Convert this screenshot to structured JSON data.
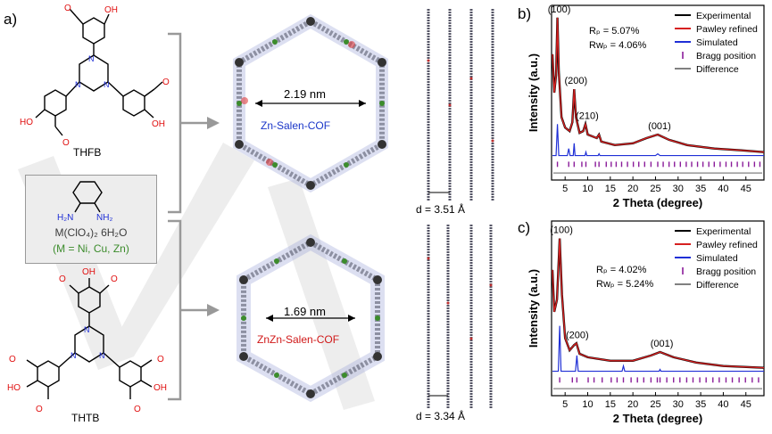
{
  "panel_labels": {
    "a": "a)",
    "b": "b)",
    "c": "c)"
  },
  "molecules": {
    "thfb": "THFB",
    "thtb": "THTB",
    "amine_metal_line1": "M(ClO₄)₂ 6H₂O",
    "amine_metal_line2": "(M = Ni, Cu, Zn)",
    "atom_o": "O",
    "atom_n": "N",
    "atom_ho": "HO",
    "atom_oh": "OH",
    "atom_h2n": "H₂N",
    "atom_nh2": "NH₂"
  },
  "cofs": {
    "top_name": "Zn-Salen-COF",
    "top_pore": "2.19 nm",
    "top_spacing": "d = 3.51 Å",
    "bottom_name": "ZnZn-Salen-COF",
    "bottom_pore": "1.69 nm",
    "bottom_spacing": "d = 3.34 Å"
  },
  "colors": {
    "experimental": "#000000",
    "pawley": "#d62020",
    "simulated": "#1f2fd6",
    "bragg": "#8a1c9a",
    "difference": "#808080",
    "metal_label": "#3c8c2c",
    "cof_top": "#1a36c8",
    "cof_bottom": "#d01818"
  },
  "chart_data": [
    {
      "panel": "b)",
      "type": "line",
      "xlabel": "2 Theta (degree)",
      "ylabel": "Intensity (a.u.)",
      "xlim": [
        2,
        49
      ],
      "xticks": [
        5,
        10,
        15,
        20,
        25,
        30,
        35,
        40,
        45
      ],
      "legend": [
        "Experimental",
        "Pawley refined",
        "Simulated",
        "Bragg position",
        "Difference"
      ],
      "stats": {
        "rp": "Rₚ = 5.07%",
        "rwp": "Rᴡₚ = 4.06%"
      },
      "peak_labels": [
        {
          "text": "(100)",
          "x": 3.3
        },
        {
          "text": "(200)",
          "x": 7.0
        },
        {
          "text": "(210)",
          "x": 9.5
        },
        {
          "text": "(001)",
          "x": 25.5
        }
      ],
      "experimental": [
        [
          2.2,
          0.72
        ],
        [
          2.6,
          0.5
        ],
        [
          3.0,
          0.6
        ],
        [
          3.3,
          0.93
        ],
        [
          3.6,
          0.62
        ],
        [
          4.2,
          0.36
        ],
        [
          5.0,
          0.3
        ],
        [
          6.0,
          0.28
        ],
        [
          6.6,
          0.33
        ],
        [
          7.0,
          0.52
        ],
        [
          7.4,
          0.36
        ],
        [
          8.2,
          0.27
        ],
        [
          9.0,
          0.28
        ],
        [
          9.5,
          0.32
        ],
        [
          10.0,
          0.26
        ],
        [
          12.0,
          0.24
        ],
        [
          12.5,
          0.26
        ],
        [
          13.0,
          0.22
        ],
        [
          16.0,
          0.2
        ],
        [
          20.0,
          0.21
        ],
        [
          23.0,
          0.24
        ],
        [
          25.5,
          0.26
        ],
        [
          28.0,
          0.23
        ],
        [
          32.0,
          0.2
        ],
        [
          38.0,
          0.18
        ],
        [
          44.0,
          0.17
        ],
        [
          49.0,
          0.16
        ]
      ],
      "simulated": [
        [
          2.2,
          0.1
        ],
        [
          3.0,
          0.1
        ],
        [
          3.3,
          0.28
        ],
        [
          3.6,
          0.1
        ],
        [
          5.5,
          0.1
        ],
        [
          5.8,
          0.14
        ],
        [
          6.1,
          0.1
        ],
        [
          6.8,
          0.1
        ],
        [
          7.0,
          0.17
        ],
        [
          7.2,
          0.1
        ],
        [
          9.4,
          0.1
        ],
        [
          9.6,
          0.12
        ],
        [
          9.8,
          0.1
        ],
        [
          12.3,
          0.1
        ],
        [
          12.5,
          0.11
        ],
        [
          12.7,
          0.1
        ],
        [
          25.0,
          0.1
        ],
        [
          25.5,
          0.11
        ],
        [
          26.0,
          0.1
        ],
        [
          49.0,
          0.1
        ]
      ],
      "bragg": [
        3.3,
        5.8,
        7.0,
        8.7,
        9.6,
        11.7,
        12.5,
        14.1,
        15.2,
        16.3,
        17.5,
        18.8,
        20.1,
        21.3,
        22.6,
        24.0,
        25.5,
        26.7,
        28.0,
        29.2,
        30.5,
        31.8,
        33.0,
        34.3,
        35.5,
        36.8,
        38.0,
        39.3,
        40.6,
        41.8,
        43.1,
        44.3,
        45.6,
        46.9,
        48.1
      ],
      "difference_level": 0.02
    },
    {
      "panel": "c)",
      "type": "line",
      "xlabel": "2 Theta (degree)",
      "ylabel": "Intensity (a.u.)",
      "xlim": [
        2,
        49
      ],
      "xticks": [
        5,
        10,
        15,
        20,
        25,
        30,
        35,
        40,
        45
      ],
      "legend": [
        "Experimental",
        "Pawley refined",
        "Simulated",
        "Bragg position",
        "Difference"
      ],
      "stats": {
        "rp": "Rₚ = 4.02%",
        "rwp": "Rᴡₚ = 5.24%"
      },
      "peak_labels": [
        {
          "text": "(100)",
          "x": 3.8
        },
        {
          "text": "(200)",
          "x": 7.3
        },
        {
          "text": "(001)",
          "x": 26.0
        }
      ],
      "experimental": [
        [
          2.2,
          0.72
        ],
        [
          2.6,
          0.48
        ],
        [
          3.2,
          0.55
        ],
        [
          3.8,
          0.9
        ],
        [
          4.3,
          0.58
        ],
        [
          5.0,
          0.33
        ],
        [
          6.0,
          0.26
        ],
        [
          7.0,
          0.29
        ],
        [
          7.5,
          0.3
        ],
        [
          8.2,
          0.24
        ],
        [
          10.0,
          0.22
        ],
        [
          15.0,
          0.2
        ],
        [
          20.0,
          0.2
        ],
        [
          24.0,
          0.23
        ],
        [
          26.0,
          0.25
        ],
        [
          29.0,
          0.22
        ],
        [
          34.0,
          0.19
        ],
        [
          40.0,
          0.17
        ],
        [
          49.0,
          0.16
        ]
      ],
      "simulated": [
        [
          2.2,
          0.1
        ],
        [
          3.5,
          0.1
        ],
        [
          3.8,
          0.36
        ],
        [
          4.1,
          0.1
        ],
        [
          7.3,
          0.1
        ],
        [
          7.6,
          0.19
        ],
        [
          7.9,
          0.1
        ],
        [
          17.6,
          0.1
        ],
        [
          17.9,
          0.13
        ],
        [
          18.2,
          0.1
        ],
        [
          25.8,
          0.1
        ],
        [
          26.0,
          0.11
        ],
        [
          26.2,
          0.1
        ],
        [
          49.0,
          0.1
        ]
      ],
      "bragg": [
        3.8,
        6.6,
        7.6,
        10.1,
        11.4,
        13.2,
        15.2,
        16.5,
        17.9,
        19.6,
        21.0,
        22.4,
        24.0,
        25.4,
        26.0,
        27.5,
        29.0,
        30.4,
        31.9,
        33.3,
        34.8,
        36.2,
        37.7,
        39.1,
        40.6,
        42.0,
        43.5,
        44.9,
        46.4,
        47.8
      ],
      "difference_level": 0.02
    }
  ]
}
